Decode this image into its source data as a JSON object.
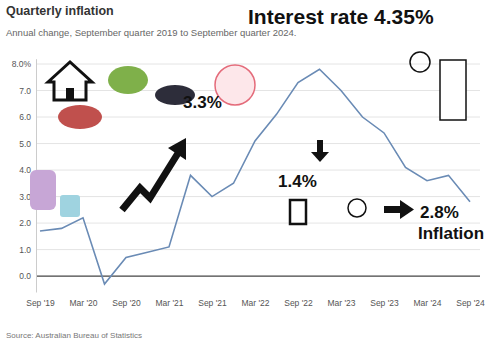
{
  "chart_data": {
    "type": "line",
    "title": "Quarterly inflation",
    "subtitle": "Annual change, September quarter 2019 to September quarter 2024.",
    "source": "Source: Australian Bureau of Statistics",
    "categories": [
      "Sep '19",
      null,
      "Mar '20",
      null,
      "Sep '20",
      null,
      "Mar '21",
      null,
      "Sep '21",
      null,
      "Mar '22",
      null,
      "Sep '22",
      null,
      "Mar '23",
      null,
      "Sep '23",
      null,
      "Mar '24",
      null,
      "Sep '24"
    ],
    "values": [
      1.7,
      1.8,
      2.2,
      -0.3,
      0.7,
      0.9,
      1.1,
      3.8,
      3.0,
      3.5,
      5.1,
      6.1,
      7.3,
      7.8,
      7.0,
      6.0,
      5.4,
      4.1,
      3.6,
      3.8,
      2.8
    ],
    "color": "#6a8bb5",
    "ylim": [
      -0.6,
      8.2
    ],
    "yticks": [
      {
        "value": 0,
        "label": "0.0"
      },
      {
        "value": 1,
        "label": "1.0"
      },
      {
        "value": 2,
        "label": "2.0"
      },
      {
        "value": 3,
        "label": "3.0"
      },
      {
        "value": 4,
        "label": "4.0"
      },
      {
        "value": 5,
        "label": "5.0"
      },
      {
        "value": 6,
        "label": "6.0"
      },
      {
        "value": 7,
        "label": "7.0"
      },
      {
        "value": 8,
        "label": "8.0%"
      }
    ],
    "grid": true,
    "annotations": [
      "Interest rate 4.35%",
      "3.3%",
      "1.4%",
      "2.8%",
      "Inflation"
    ]
  }
}
